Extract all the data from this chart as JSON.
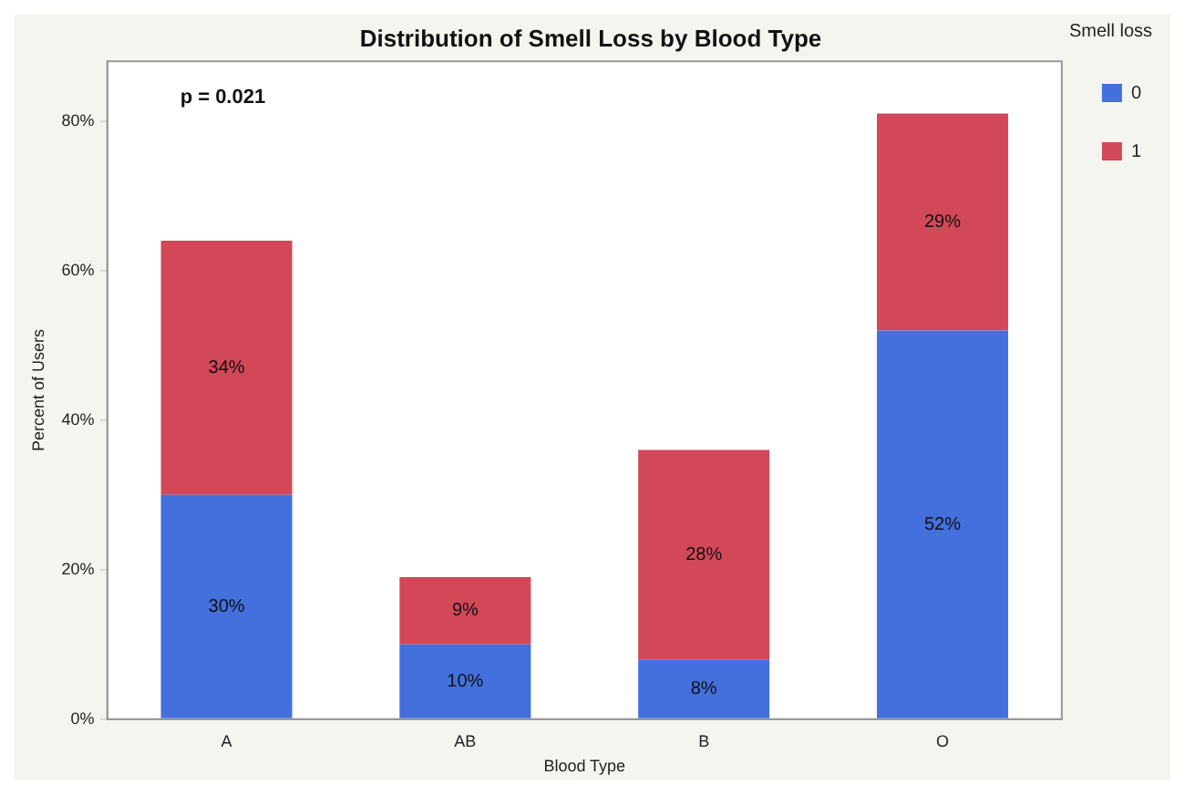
{
  "chart_data": {
    "type": "bar",
    "title": "Distribution of Smell Loss by Blood Type",
    "xlabel": "Blood Type",
    "ylabel": "Percent of Users",
    "legend_title": "Smell loss",
    "categories": [
      "A",
      "AB",
      "B",
      "O"
    ],
    "series": [
      {
        "name": "0",
        "color": "#4370dd",
        "values": [
          30,
          10,
          8,
          52
        ],
        "value_labels": [
          "30%",
          "10%",
          "8%",
          "52%"
        ]
      },
      {
        "name": "1",
        "color": "#d24858",
        "values": [
          34,
          9,
          28,
          29
        ],
        "value_labels": [
          "34%",
          "9%",
          "28%",
          "29%"
        ]
      }
    ],
    "stacked": true,
    "ylim": [
      0,
      88
    ],
    "yticks": [
      {
        "value": 0,
        "label": "0%"
      },
      {
        "value": 20,
        "label": "20%"
      },
      {
        "value": 40,
        "label": "40%"
      },
      {
        "value": 60,
        "label": "60%"
      },
      {
        "value": 80,
        "label": "80%"
      }
    ],
    "annotations": [
      "p = 0.021"
    ],
    "grid": false,
    "legend": "top right"
  }
}
